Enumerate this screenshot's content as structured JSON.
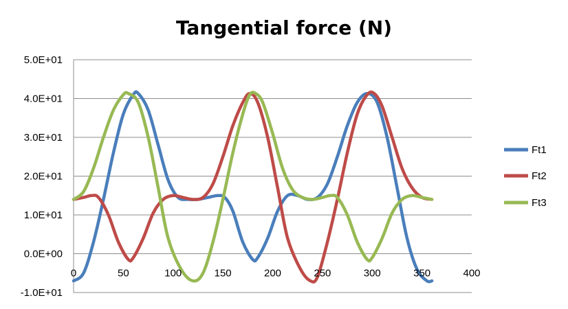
{
  "chart_data": {
    "type": "line",
    "title": "Tangential force (N)",
    "xlabel": "",
    "ylabel": "",
    "xlim": [
      0,
      400
    ],
    "ylim": [
      -10,
      50
    ],
    "x_ticks": [
      0,
      50,
      100,
      150,
      200,
      250,
      300,
      350,
      400
    ],
    "y_ticks": [
      -10,
      0,
      10,
      20,
      30,
      40,
      50
    ],
    "y_tick_labels": [
      "-1.0E+01",
      "0.0E+00",
      "1.0E+01",
      "2.0E+01",
      "3.0E+01",
      "4.0E+01",
      "5.0E+01"
    ],
    "grid": "horizontal",
    "legend_position": "right",
    "series": [
      {
        "name": "Ft1",
        "color": "#4a7ebb",
        "points": [
          [
            0,
            -7
          ],
          [
            10,
            -5
          ],
          [
            20,
            3
          ],
          [
            30,
            14
          ],
          [
            40,
            26
          ],
          [
            50,
            36
          ],
          [
            60,
            41
          ],
          [
            65,
            41.3
          ],
          [
            75,
            37
          ],
          [
            85,
            28
          ],
          [
            95,
            19
          ],
          [
            105,
            14.5
          ],
          [
            115,
            14
          ],
          [
            125,
            14
          ],
          [
            135,
            14.5
          ],
          [
            145,
            15
          ],
          [
            152,
            14.5
          ],
          [
            160,
            11
          ],
          [
            170,
            3
          ],
          [
            180,
            -1.5
          ],
          [
            185,
            -1
          ],
          [
            195,
            4
          ],
          [
            205,
            11
          ],
          [
            215,
            15
          ],
          [
            225,
            15
          ],
          [
            235,
            14
          ],
          [
            245,
            14.5
          ],
          [
            255,
            18
          ],
          [
            265,
            25
          ],
          [
            275,
            33
          ],
          [
            285,
            39
          ],
          [
            295,
            41.3
          ],
          [
            305,
            39
          ],
          [
            315,
            30
          ],
          [
            325,
            17
          ],
          [
            335,
            4
          ],
          [
            345,
            -4
          ],
          [
            355,
            -7
          ],
          [
            360,
            -7
          ]
        ]
      },
      {
        "name": "Ft2",
        "color": "#be4b48",
        "points": [
          [
            0,
            14
          ],
          [
            10,
            14.5
          ],
          [
            18,
            15
          ],
          [
            25,
            14.5
          ],
          [
            35,
            10
          ],
          [
            45,
            3
          ],
          [
            55,
            -1.5
          ],
          [
            60,
            -1
          ],
          [
            70,
            4
          ],
          [
            80,
            10.5
          ],
          [
            90,
            14
          ],
          [
            100,
            15
          ],
          [
            110,
            14.5
          ],
          [
            120,
            14
          ],
          [
            130,
            14.5
          ],
          [
            140,
            18
          ],
          [
            150,
            25
          ],
          [
            160,
            33
          ],
          [
            170,
            39
          ],
          [
            177,
            41.3
          ],
          [
            185,
            39
          ],
          [
            195,
            30
          ],
          [
            205,
            17
          ],
          [
            215,
            4
          ],
          [
            228,
            -4
          ],
          [
            238,
            -7
          ],
          [
            245,
            -6
          ],
          [
            255,
            3
          ],
          [
            265,
            14
          ],
          [
            275,
            26
          ],
          [
            285,
            36
          ],
          [
            295,
            41
          ],
          [
            302,
            41.3
          ],
          [
            310,
            38
          ],
          [
            320,
            30
          ],
          [
            330,
            22
          ],
          [
            340,
            17
          ],
          [
            350,
            14.5
          ],
          [
            360,
            14
          ]
        ]
      },
      {
        "name": "Ft3",
        "color": "#98b954",
        "points": [
          [
            0,
            14
          ],
          [
            10,
            16
          ],
          [
            20,
            22
          ],
          [
            30,
            30
          ],
          [
            40,
            37
          ],
          [
            50,
            41
          ],
          [
            55,
            41.3
          ],
          [
            65,
            39
          ],
          [
            75,
            30
          ],
          [
            85,
            17
          ],
          [
            95,
            4
          ],
          [
            108,
            -4
          ],
          [
            120,
            -7
          ],
          [
            130,
            -5
          ],
          [
            140,
            3
          ],
          [
            150,
            14
          ],
          [
            160,
            26
          ],
          [
            170,
            36
          ],
          [
            177,
            41
          ],
          [
            183,
            41.3
          ],
          [
            190,
            39
          ],
          [
            200,
            31
          ],
          [
            210,
            22
          ],
          [
            220,
            16.5
          ],
          [
            230,
            14.5
          ],
          [
            240,
            14
          ],
          [
            250,
            14.5
          ],
          [
            258,
            15
          ],
          [
            265,
            14.5
          ],
          [
            275,
            10
          ],
          [
            285,
            3
          ],
          [
            295,
            -1.5
          ],
          [
            300,
            -1
          ],
          [
            310,
            4
          ],
          [
            320,
            10.5
          ],
          [
            330,
            14
          ],
          [
            340,
            15
          ],
          [
            350,
            14.5
          ],
          [
            360,
            14
          ]
        ]
      }
    ]
  }
}
